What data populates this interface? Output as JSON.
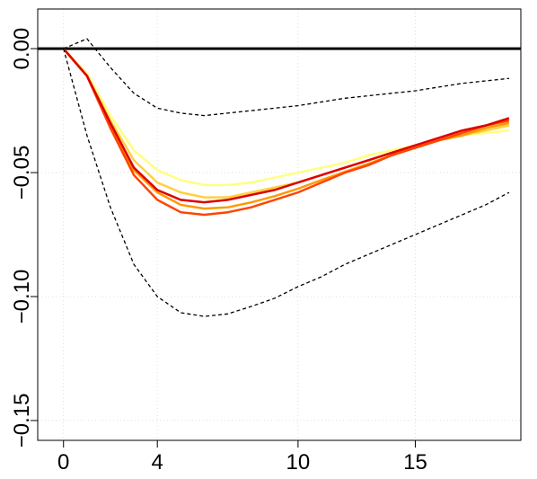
{
  "chart_data": {
    "type": "line",
    "x": [
      0,
      1,
      2,
      3,
      4,
      5,
      6,
      7,
      8,
      9,
      10,
      11,
      12,
      13,
      14,
      15,
      16,
      17,
      18,
      19
    ],
    "xlim": [
      -1.1,
      19.5
    ],
    "xticks": [
      0,
      4,
      10,
      15
    ],
    "ylim": [
      -0.158,
      0.016
    ],
    "yticks": [
      {
        "value": 0,
        "label": "0.00"
      },
      {
        "value": -0.05,
        "label": "−0.05"
      },
      {
        "value": -0.1,
        "label": "−0.10"
      },
      {
        "value": -0.15,
        "label": "−0.15"
      }
    ],
    "grid": true,
    "hline": 0,
    "hline_color": "#000000",
    "series": [
      {
        "color": "#ffff80",
        "dashed": false,
        "values": [
          0,
          -0.01,
          -0.027,
          -0.041,
          -0.049,
          -0.053,
          -0.055,
          -0.055,
          -0.054,
          -0.052,
          -0.05,
          -0.048,
          -0.046,
          -0.043,
          -0.041,
          -0.039,
          -0.037,
          -0.035,
          -0.034,
          -0.033
        ]
      },
      {
        "color": "#ffd040",
        "dashed": false,
        "values": [
          0,
          -0.011,
          -0.029,
          -0.045,
          -0.054,
          -0.058,
          -0.06,
          -0.06,
          -0.058,
          -0.056,
          -0.054,
          -0.051,
          -0.048,
          -0.045,
          -0.042,
          -0.04,
          -0.037,
          -0.035,
          -0.033,
          -0.031
        ]
      },
      {
        "color": "#ff9900",
        "dashed": false,
        "values": [
          0,
          -0.011,
          -0.031,
          -0.049,
          -0.058,
          -0.063,
          -0.0645,
          -0.064,
          -0.062,
          -0.0595,
          -0.0565,
          -0.053,
          -0.0497,
          -0.0464,
          -0.043,
          -0.04,
          -0.037,
          -0.035,
          -0.032,
          -0.03
        ]
      },
      {
        "color": "#ff4400",
        "dashed": false,
        "values": [
          0,
          -0.011,
          -0.032,
          -0.051,
          -0.061,
          -0.066,
          -0.067,
          -0.066,
          -0.064,
          -0.061,
          -0.058,
          -0.054,
          -0.05,
          -0.047,
          -0.043,
          -0.04,
          -0.037,
          -0.034,
          -0.031,
          -0.029
        ]
      },
      {
        "color": "#dd0000",
        "dashed": false,
        "values": [
          0,
          -0.011,
          -0.03,
          -0.048,
          -0.057,
          -0.061,
          -0.062,
          -0.061,
          -0.059,
          -0.057,
          -0.054,
          -0.051,
          -0.048,
          -0.045,
          -0.042,
          -0.039,
          -0.036,
          -0.033,
          -0.031,
          -0.028
        ]
      },
      {
        "color": "#000000",
        "dashed": true,
        "values": [
          0,
          0.004,
          -0.0076,
          -0.018,
          -0.024,
          -0.026,
          -0.027,
          -0.026,
          -0.025,
          -0.024,
          -0.023,
          -0.0215,
          -0.02,
          -0.019,
          -0.018,
          -0.017,
          -0.0155,
          -0.014,
          -0.013,
          -0.012
        ]
      },
      {
        "color": "#000000",
        "dashed": true,
        "values": [
          0,
          -0.035,
          -0.064,
          -0.087,
          -0.1,
          -0.1065,
          -0.108,
          -0.107,
          -0.104,
          -0.1007,
          -0.096,
          -0.092,
          -0.087,
          -0.083,
          -0.079,
          -0.075,
          -0.071,
          -0.067,
          -0.063,
          -0.058
        ]
      }
    ]
  }
}
